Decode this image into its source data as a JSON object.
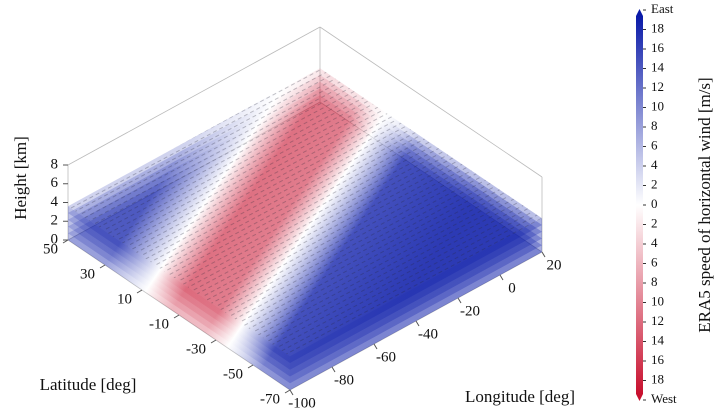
{
  "chart_data": {
    "type": "quiver",
    "xlabel": "Longitude [deg]",
    "ylabel": "Latitude [deg]",
    "zlabel": "Height [km]",
    "xlim": [
      -100,
      20
    ],
    "xticks": [
      -100,
      -80,
      -60,
      -40,
      -20,
      0,
      20
    ],
    "ylim": [
      -70,
      50
    ],
    "yticks": [
      50,
      30,
      10,
      -10,
      -30,
      -50,
      -70
    ],
    "zlim": [
      0,
      8
    ],
    "zticks": [
      0,
      2,
      4,
      6,
      8
    ],
    "colorbar": {
      "label": "ERA5 speed of horizontal wind [m/s]",
      "clim": [
        -20,
        20
      ],
      "colors": [
        "#c8102e",
        "#ffffff",
        "#0a1aa8"
      ],
      "ticks": [
        {
          "value": 20,
          "label": "East"
        },
        18,
        16,
        14,
        12,
        10,
        8,
        6,
        4,
        2,
        0,
        {
          "value": -2,
          "label": "2"
        },
        {
          "value": -4,
          "label": "4"
        },
        {
          "value": -6,
          "label": "6"
        },
        {
          "value": -8,
          "label": "8"
        },
        {
          "value": -10,
          "label": "10"
        },
        {
          "value": -12,
          "label": "12"
        },
        {
          "value": -14,
          "label": "14"
        },
        {
          "value": -16,
          "label": "16"
        },
        {
          "value": -18,
          "label": "18"
        },
        {
          "value": -20,
          "label": "West"
        }
      ]
    }
  }
}
